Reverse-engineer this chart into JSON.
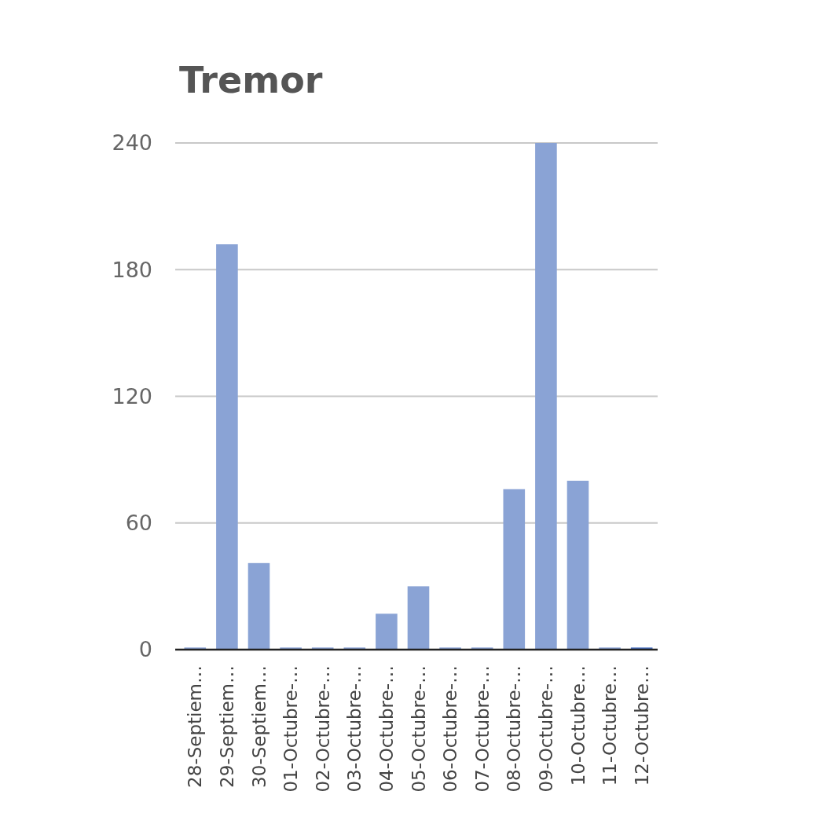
{
  "chart_data": {
    "type": "bar",
    "title": "Tremor",
    "categories": [
      "28-Septiem…",
      "29-Septiem…",
      "30-Septiem…",
      "01-Octubre-…",
      "02-Octubre-…",
      "03-Octubre-…",
      "04-Octubre-…",
      "05-Octubre-…",
      "06-Octubre-…",
      "07-Octubre-…",
      "08-Octubre-…",
      "09-Octubre-…",
      "10-Octubre…",
      "11-Octubre…",
      "12-Octubre…"
    ],
    "values": [
      1,
      192,
      41,
      1,
      1,
      1,
      17,
      30,
      1,
      1,
      76,
      240,
      80,
      1,
      1
    ],
    "colors": [
      "#8aa3d5",
      "#8aa3d5",
      "#8aa3d5",
      "#8aa3d5",
      "#8aa3d5",
      "#8aa3d5",
      "#8aa3d5",
      "#8aa3d5",
      "#8aa3d5",
      "#8aa3d5",
      "#8aa3d5",
      "#8aa3d5",
      "#8aa3d5",
      "#8aa3d5",
      "#4a72c2"
    ],
    "ylim": [
      0,
      240
    ],
    "yticks": [
      0,
      60,
      120,
      180,
      240
    ],
    "grid": "y"
  }
}
